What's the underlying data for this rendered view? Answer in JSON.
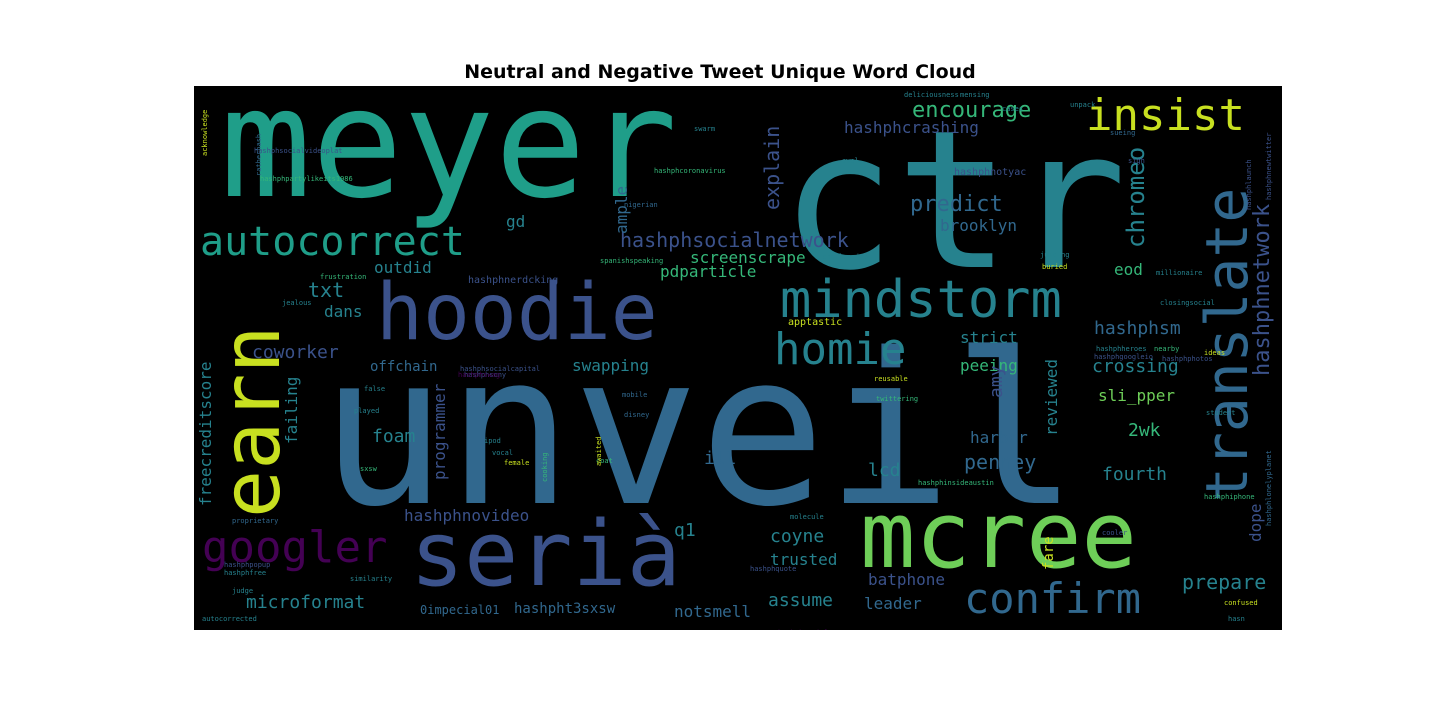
{
  "title": "Neutral and Negative Tweet Unique Word Cloud",
  "palette": {
    "purple": "#440154",
    "indigo": "#3b528b",
    "blue": "#31688e",
    "teal": "#26828e",
    "sea": "#1f9e89",
    "green": "#35b779",
    "lime": "#6ece58",
    "yellow": "#c8e020"
  },
  "words": {
    "meyer": "meyer",
    "ctr": "ctr",
    "unveil": "unveil",
    "hoodie": "hoodie",
    "earn": "earn",
    "seria": "serià",
    "mcree": "mcree",
    "translate": "translate",
    "mindstorm": "mindstorm",
    "insist": "insist",
    "autocorrect": "autocorrect",
    "homie": "homie",
    "googler": "googler",
    "confirm": "confirm",
    "encourage": "encourage",
    "hashphcrashing": "hashphcrashing",
    "chromeo": "chromeo",
    "hashphnetwork": "hashphnetwork",
    "explain": "explain",
    "predict": "predict",
    "hashphsocialnetwork": "hashphsocialnetwork",
    "brooklyn": "brooklyn",
    "gd": "gd",
    "ample": "ample",
    "screenscrape": "screenscrape",
    "pdparticle": "pdparticle",
    "outdid": "outdid",
    "txt": "txt",
    "dans": "dans",
    "coworker": "coworker",
    "hashphsm": "hashphsm",
    "strict": "strict",
    "peeing": "peeing",
    "swapping": "swapping",
    "crossing": "crossing",
    "sli_pper": "sli_pper",
    "freecreditscore": "freecreditscore",
    "failing": "failing",
    "foam": "foam",
    "programmer": "programmer",
    "offchain": "offchain",
    "amy": "amy",
    "reviewed": "reviewed",
    "harbor": "harbor",
    "2wk": "2wk",
    "penney": "penney",
    "ill": "ill",
    "lcd": "lcd",
    "fourth": "fourth",
    "hashphnovideo": "hashphnovideo",
    "q1": "q1",
    "coyne": "coyne",
    "trusted": "trusted",
    "batphone": "batphone",
    "prepare": "prepare",
    "dope": "dope",
    "microformat": "microformat",
    "assume": "assume",
    "leader": "leader",
    "hashpht3sxsw": "hashpht3sxsw",
    "notsmell": "notsmell",
    "hashphspecial": "0impecial01",
    "eod": "eod",
    "fare": "fare",
    "hashphnerdcking": "hashphnerdcking",
    "apptastic": "apptastic",
    "hashphnotyac": "hashphnotyac",
    "hashphcoronavirus": "hashphcoronavirus",
    "hashphparty": "hashphpartylikeits1986",
    "hashphsocialvideo": "hashphsocialvideoplat",
    "nigerian": "nigerian",
    "challenging": "challenging",
    "juicing": "juicing",
    "buried": "buried",
    "closingsocial": "closingsocial",
    "hashphsocialcapital": "hashphsocialcapital",
    "frustration": "frustration",
    "jealous": "jealous",
    "reusable": "reusable",
    "twittering": "twittering",
    "false": "false",
    "played": "played",
    "mobile": "mobile",
    "disney": "disney",
    "hashphinsideaustin": "hashphinsideaustin",
    "millionaire": "millionaire",
    "sueing": "sueing",
    "hashphsocialcamp": "hashphsocialcamp",
    "mensing": "mensing",
    "deli": "deliciousness",
    "acknowledge": "acknowledge",
    "ratherhash": "ratherhash",
    "spanishspeaking": "spanishspeaking",
    "hashphsony": "hashphsony",
    "hashphscreenshot": "hashphscreenshot",
    "hashphquote": "hashphquote",
    "proprietary": "proprietary",
    "judge": "judge",
    "autocorrected": "autocorrected",
    "similarity": "similarity",
    "confused": "confused",
    "hasn": "hasn",
    "student": "student",
    "hashphiphone": "hashphiphone",
    "hashphgoogleio": "hashphgoogleio",
    "molecule": "molecule",
    "coat": "coat",
    "sxsw": "sxsw",
    "vocal": "vocal",
    "ipod": "ipod",
    "female": "female",
    "cooking": "cooking",
    "awaited": "awaited",
    "hashphswag": "hashphswag",
    "nearby": "nearby",
    "hashphnewtwitter": "hashphnewtwitter",
    "hashphlaunch": "hashphlaunch",
    "hashphlonelyplanet": "hashphlonelyplanet",
    "hashphpopup": "hashphpopup",
    "hashphheroes": "hashphheroes",
    "hashphphotos": "hashphphotos",
    "hashphfree": "hashphfree",
    "ideas": "ideas",
    "unpack": "unpack",
    "cases": "cases",
    "cooler": "cooler",
    "swarm": "swarm",
    "awol": "awol",
    "sigh": "sigh"
  }
}
